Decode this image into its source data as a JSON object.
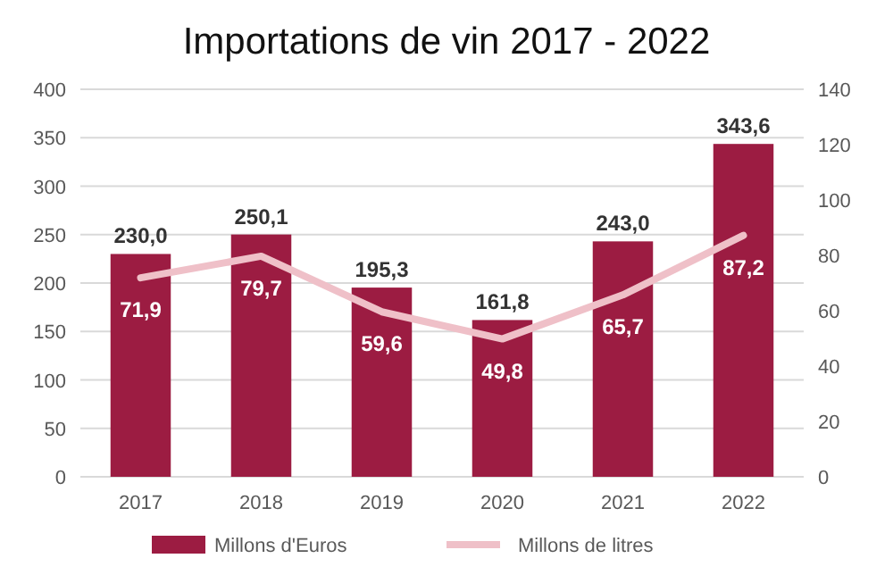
{
  "chart_data": {
    "type": "bar",
    "title": "Importations de vin 2017 - 2022",
    "categories": [
      "2017",
      "2018",
      "2019",
      "2020",
      "2021",
      "2022"
    ],
    "series": [
      {
        "name": "Millons d'Euros",
        "color": "#9c1c42",
        "values": [
          230.0,
          250.1,
          195.3,
          161.8,
          243.0,
          343.6
        ],
        "value_labels": [
          "230,0",
          "250,1",
          "195,3",
          "161,8",
          "243,0",
          "343,6"
        ]
      },
      {
        "name": "Millons de litres",
        "type": "line",
        "axis": "y2",
        "color": "#efc0c8",
        "values": [
          71.9,
          79.7,
          59.6,
          49.8,
          65.7,
          87.2
        ],
        "value_labels": [
          "71,9",
          "79,7",
          "59,6",
          "49,8",
          "65,7",
          "87,2"
        ]
      }
    ],
    "ylim": [
      0,
      400
    ],
    "yticks": [
      0,
      50,
      100,
      150,
      200,
      250,
      300,
      350,
      400
    ],
    "y2lim": [
      0,
      140
    ],
    "y2ticks": [
      0,
      20,
      40,
      60,
      80,
      100,
      120,
      140
    ],
    "grid": "y",
    "legend": "bottom",
    "marker": "none",
    "line_style": "solid"
  }
}
